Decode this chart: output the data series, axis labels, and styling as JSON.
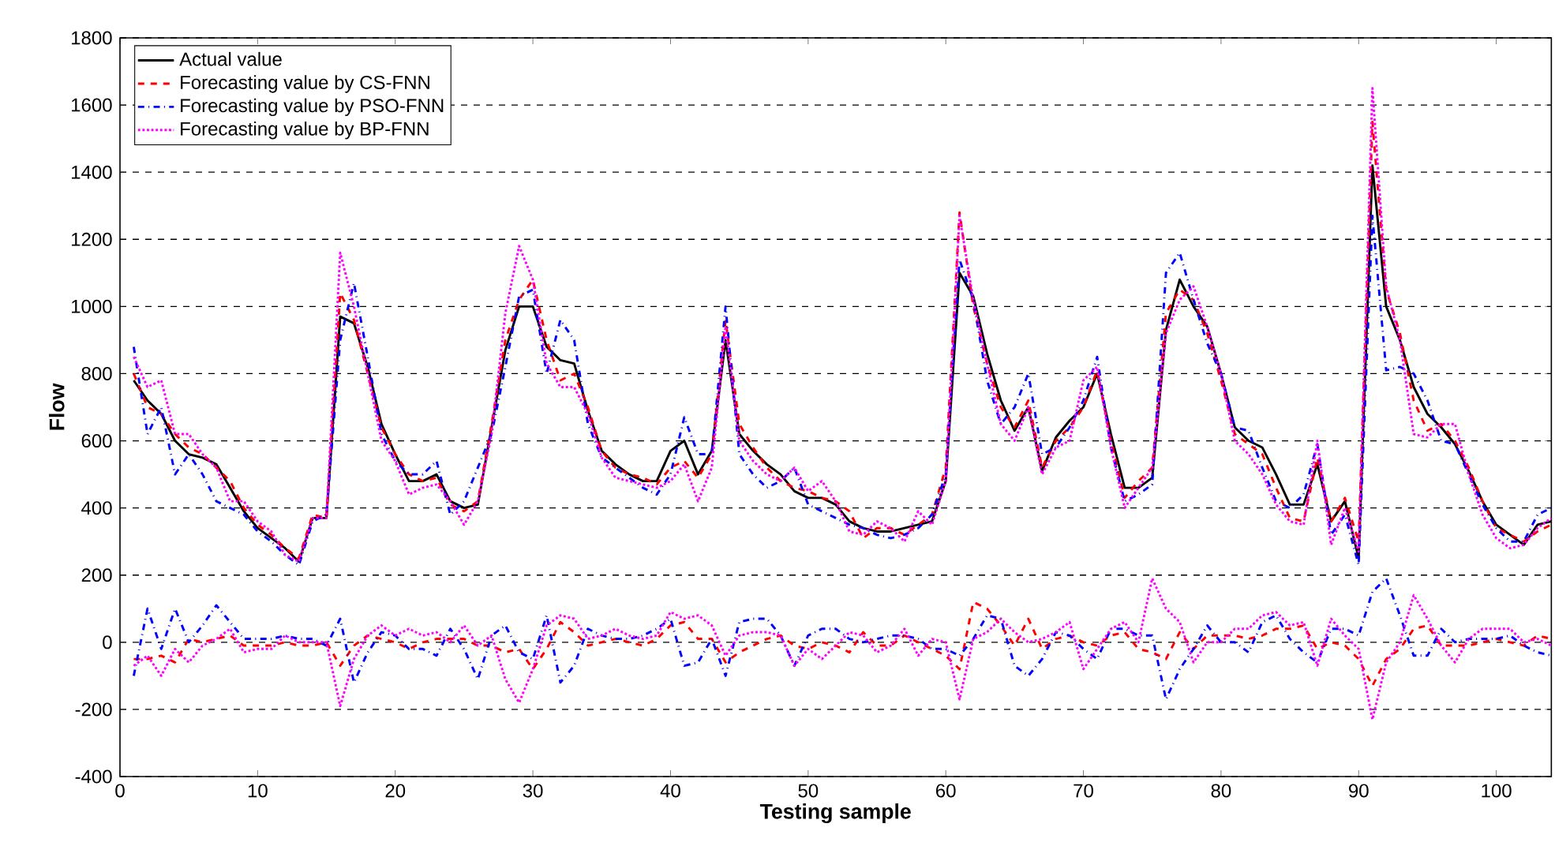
{
  "chart_data": {
    "type": "line",
    "xlabel": "Testing sample",
    "ylabel": "Flow",
    "xlim": [
      0,
      104
    ],
    "ylim": [
      -400,
      1800
    ],
    "xticks": [
      0,
      10,
      20,
      30,
      40,
      50,
      60,
      70,
      80,
      90,
      100
    ],
    "yticks": [
      -400,
      -200,
      0,
      200,
      400,
      600,
      800,
      1000,
      1200,
      1400,
      1600,
      1800
    ],
    "grid": "y",
    "legend": "top left",
    "x": [
      1,
      2,
      3,
      4,
      5,
      6,
      7,
      8,
      9,
      10,
      11,
      12,
      13,
      14,
      15,
      16,
      17,
      18,
      19,
      20,
      21,
      22,
      23,
      24,
      25,
      26,
      27,
      28,
      29,
      30,
      31,
      32,
      33,
      34,
      35,
      36,
      37,
      38,
      39,
      40,
      41,
      42,
      43,
      44,
      45,
      46,
      47,
      48,
      49,
      50,
      51,
      52,
      53,
      54,
      55,
      56,
      57,
      58,
      59,
      60,
      61,
      62,
      63,
      64,
      65,
      66,
      67,
      68,
      69,
      70,
      71,
      72,
      73,
      74,
      75,
      76,
      77,
      78,
      79,
      80,
      81,
      82,
      83,
      84,
      85,
      86,
      87,
      88,
      89,
      90,
      91,
      92,
      93,
      94,
      95,
      96,
      97,
      98,
      99,
      100,
      101,
      102,
      103,
      104
    ],
    "series": [
      {
        "name": "Actual value",
        "color": "#000000",
        "line_style": "solid",
        "values": [
          780,
          720,
          680,
          600,
          560,
          550,
          530,
          460,
          390,
          340,
          310,
          280,
          240,
          370,
          370,
          970,
          950,
          820,
          650,
          560,
          480,
          480,
          500,
          420,
          400,
          410,
          640,
          870,
          1000,
          1000,
          880,
          840,
          830,
          690,
          570,
          530,
          500,
          480,
          480,
          570,
          600,
          500,
          570,
          900,
          620,
          570,
          530,
          500,
          450,
          430,
          430,
          410,
          360,
          340,
          330,
          330,
          340,
          350,
          360,
          480,
          1100,
          1030,
          860,
          720,
          630,
          700,
          510,
          610,
          660,
          700,
          800,
          620,
          460,
          460,
          490,
          930,
          1080,
          1000,
          940,
          800,
          640,
          600,
          580,
          500,
          410,
          410,
          530,
          360,
          420,
          250,
          1420,
          1000,
          900,
          760,
          680,
          640,
          590,
          510,
          420,
          350,
          320,
          290,
          350,
          360
        ]
      },
      {
        "name": "Forecasting value by CS-FNN",
        "color": "#ff0000",
        "line_style": "dashed",
        "values": [
          800,
          700,
          680,
          620,
          580,
          560,
          520,
          480,
          400,
          350,
          320,
          280,
          250,
          380,
          370,
          1040,
          960,
          800,
          640,
          560,
          500,
          480,
          490,
          410,
          390,
          420,
          650,
          900,
          1020,
          1080,
          900,
          780,
          800,
          700,
          570,
          520,
          500,
          490,
          470,
          520,
          540,
          490,
          560,
          960,
          650,
          580,
          520,
          480,
          460,
          450,
          430,
          420,
          390,
          310,
          340,
          340,
          320,
          350,
          380,
          520,
          1280,
          1000,
          830,
          700,
          640,
          720,
          520,
          600,
          640,
          700,
          810,
          600,
          430,
          480,
          520,
          980,
          1050,
          1020,
          920,
          780,
          620,
          590,
          560,
          460,
          370,
          360,
          550,
          360,
          430,
          300,
          1550,
          1050,
          920,
          720,
          630,
          650,
          600,
          520,
          420,
          340,
          320,
          300,
          330,
          350
        ]
      },
      {
        "name": "Forecasting value by PSO-FNN",
        "color": "#0000ff",
        "line_style": "dashdot",
        "values": [
          880,
          620,
          700,
          500,
          560,
          500,
          420,
          400,
          380,
          330,
          300,
          260,
          230,
          360,
          380,
          900,
          1070,
          850,
          620,
          540,
          500,
          500,
          540,
          380,
          420,
          520,
          620,
          820,
          1030,
          1050,
          800,
          960,
          900,
          650,
          550,
          520,
          490,
          460,
          440,
          500,
          670,
          560,
          560,
          1000,
          560,
          500,
          460,
          480,
          520,
          410,
          390,
          370,
          350,
          340,
          320,
          310,
          320,
          340,
          380,
          500,
          1140,
          1020,
          780,
          650,
          700,
          800,
          560,
          580,
          640,
          720,
          850,
          580,
          420,
          440,
          470,
          1100,
          1160,
          1020,
          890,
          800,
          640,
          630,
          520,
          420,
          400,
          440,
          590,
          320,
          380,
          230,
          1270,
          810,
          820,
          800,
          720,
          600,
          590,
          500,
          410,
          340,
          300,
          300,
          380,
          400
        ]
      },
      {
        "name": "Forecasting value by BP-FNN",
        "color": "#ff00ff",
        "line_style": "dotted",
        "values": [
          850,
          760,
          780,
          620,
          620,
          560,
          520,
          420,
          420,
          360,
          330,
          260,
          240,
          370,
          370,
          1160,
          1000,
          800,
          600,
          540,
          440,
          460,
          470,
          420,
          350,
          420,
          620,
          980,
          1180,
          1080,
          830,
          760,
          760,
          680,
          550,
          490,
          480,
          470,
          460,
          480,
          530,
          420,
          520,
          940,
          600,
          540,
          500,
          480,
          520,
          450,
          480,
          420,
          330,
          320,
          360,
          340,
          300,
          390,
          350,
          480,
          1270,
          1020,
          830,
          650,
          600,
          700,
          500,
          580,
          600,
          780,
          820,
          580,
          400,
          460,
          520,
          920,
          1020,
          1060,
          940,
          800,
          600,
          560,
          500,
          410,
          360,
          350,
          600,
          290,
          400,
          270,
          1650,
          1060,
          900,
          620,
          610,
          650,
          650,
          500,
          380,
          310,
          280,
          290,
          340,
          370
        ]
      },
      {
        "color": "#ff0000",
        "line_style": "dashed",
        "values": [
          -50,
          -50,
          -40,
          -60,
          10,
          0,
          10,
          20,
          -10,
          -10,
          -10,
          0,
          -10,
          -10,
          0,
          -70,
          -10,
          20,
          10,
          0,
          -20,
          0,
          10,
          10,
          10,
          -10,
          -10,
          -30,
          -20,
          -80,
          -20,
          60,
          30,
          -10,
          0,
          10,
          0,
          -10,
          10,
          50,
          60,
          10,
          10,
          -60,
          -30,
          -10,
          10,
          20,
          -10,
          -20,
          0,
          -10,
          -30,
          30,
          -10,
          -10,
          20,
          0,
          -20,
          -40,
          -80,
          120,
          100,
          50,
          -10,
          70,
          -20,
          10,
          20,
          0,
          -10,
          20,
          30,
          -20,
          -30,
          -50,
          30,
          -20,
          20,
          20,
          20,
          10,
          20,
          40,
          40,
          50,
          -20,
          0,
          -10,
          -50,
          -130,
          -50,
          -20,
          40,
          50,
          -10,
          -10,
          -10,
          0,
          10,
          0,
          -10,
          20,
          10
        ]
      },
      {
        "color": "#0000ff",
        "line_style": "dashdot",
        "values": [
          -100,
          100,
          -20,
          100,
          0,
          50,
          110,
          60,
          10,
          10,
          10,
          20,
          10,
          10,
          -10,
          70,
          -120,
          -30,
          30,
          20,
          -20,
          -20,
          -40,
          40,
          -20,
          -110,
          20,
          50,
          -30,
          -50,
          80,
          -120,
          -70,
          40,
          20,
          10,
          10,
          20,
          40,
          70,
          -70,
          -60,
          10,
          -100,
          60,
          70,
          70,
          20,
          -70,
          20,
          40,
          40,
          10,
          0,
          10,
          20,
          20,
          10,
          -20,
          -20,
          -40,
          10,
          80,
          70,
          -70,
          -100,
          -50,
          30,
          20,
          -20,
          -50,
          40,
          40,
          20,
          20,
          -170,
          -80,
          -20,
          50,
          0,
          0,
          -30,
          60,
          80,
          10,
          -30,
          -60,
          40,
          40,
          20,
          150,
          190,
          80,
          -40,
          -40,
          40,
          0,
          10,
          10,
          10,
          20,
          -10,
          -30,
          -40
        ]
      },
      {
        "color": "#ff00ff",
        "line_style": "dotted",
        "values": [
          -70,
          -40,
          -100,
          -20,
          -60,
          -10,
          10,
          40,
          -30,
          -20,
          -20,
          20,
          0,
          0,
          0,
          -190,
          -50,
          20,
          50,
          20,
          40,
          20,
          30,
          0,
          50,
          -10,
          20,
          -110,
          -180,
          -80,
          50,
          80,
          70,
          10,
          20,
          40,
          20,
          10,
          20,
          90,
          70,
          80,
          50,
          -40,
          20,
          30,
          30,
          20,
          -70,
          -20,
          -50,
          -10,
          30,
          20,
          -30,
          -10,
          40,
          -40,
          10,
          0,
          -170,
          10,
          30,
          70,
          30,
          0,
          10,
          30,
          60,
          -80,
          -20,
          40,
          60,
          0,
          190,
          100,
          60,
          -60,
          0,
          0,
          40,
          40,
          80,
          90,
          50,
          60,
          -70,
          70,
          20,
          -20,
          -230,
          -60,
          0,
          140,
          70,
          -10,
          -60,
          10,
          40,
          40,
          40,
          0,
          10,
          -10
        ]
      }
    ]
  }
}
